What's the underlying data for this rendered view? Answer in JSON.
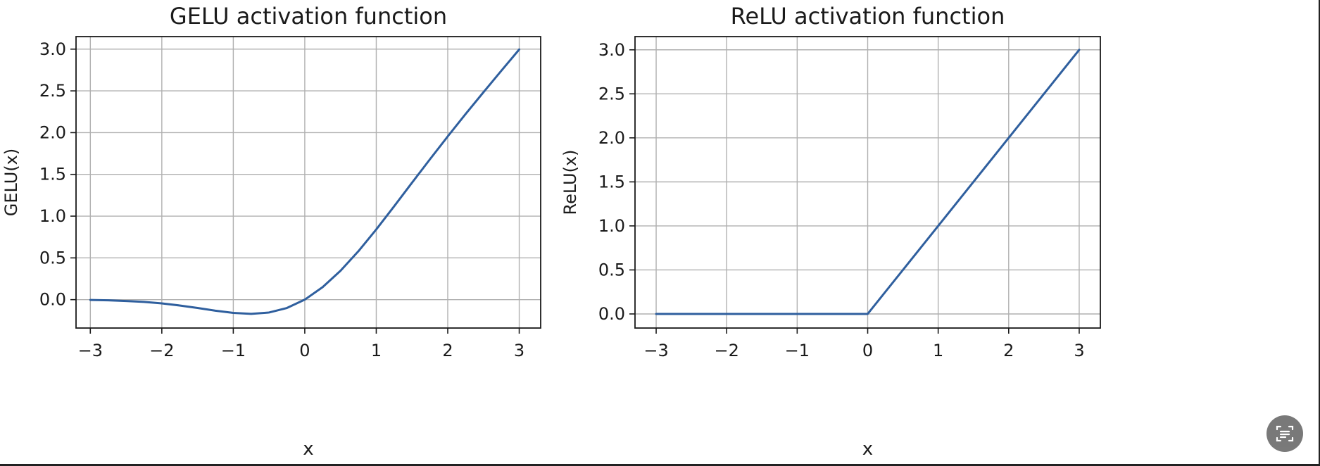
{
  "chart_data": [
    {
      "type": "line",
      "title": "GELU activation function",
      "xlabel": "x",
      "ylabel": "GELU(x)",
      "xlim": [
        -3.2,
        3.3
      ],
      "ylim": [
        -0.34,
        3.15
      ],
      "xticks": [
        -3,
        -2,
        -1,
        0,
        1,
        2,
        3
      ],
      "xtick_labels": [
        "−3",
        "−2",
        "−1",
        "0",
        "1",
        "2",
        "3"
      ],
      "yticks": [
        0.0,
        0.5,
        1.0,
        1.5,
        2.0,
        2.5,
        3.0
      ],
      "ytick_labels": [
        "0.0",
        "0.5",
        "1.0",
        "1.5",
        "2.0",
        "2.5",
        "3.0"
      ],
      "grid": true,
      "series": [
        {
          "color": "#2f5f9e",
          "x": [
            -3.0,
            -2.75,
            -2.5,
            -2.25,
            -2.0,
            -1.75,
            -1.5,
            -1.25,
            -1.0,
            -0.75,
            -0.5,
            -0.25,
            0.0,
            0.25,
            0.5,
            0.75,
            1.0,
            1.25,
            1.5,
            1.75,
            2.0,
            2.25,
            2.5,
            2.75,
            3.0
          ],
          "y": [
            -0.004,
            -0.008,
            -0.016,
            -0.027,
            -0.045,
            -0.07,
            -0.1,
            -0.132,
            -0.159,
            -0.17,
            -0.154,
            -0.1,
            0.0,
            0.15,
            0.346,
            0.58,
            0.841,
            1.118,
            1.4,
            1.68,
            1.955,
            2.223,
            2.484,
            2.742,
            2.996
          ]
        }
      ]
    },
    {
      "type": "line",
      "title": "ReLU activation function",
      "xlabel": "x",
      "ylabel": "ReLU(x)",
      "xlim": [
        -3.3,
        3.3
      ],
      "ylim": [
        -0.16,
        3.15
      ],
      "xticks": [
        -3,
        -2,
        -1,
        0,
        1,
        2,
        3
      ],
      "xtick_labels": [
        "−3",
        "−2",
        "−1",
        "0",
        "1",
        "2",
        "3"
      ],
      "yticks": [
        0.0,
        0.5,
        1.0,
        1.5,
        2.0,
        2.5,
        3.0
      ],
      "ytick_labels": [
        "0.0",
        "0.5",
        "1.0",
        "1.5",
        "2.0",
        "2.5",
        "3.0"
      ],
      "grid": true,
      "series": [
        {
          "color": "#2f5f9e",
          "x": [
            -3.0,
            -2.0,
            -1.0,
            0.0,
            1.0,
            2.0,
            3.0
          ],
          "y": [
            0.0,
            0.0,
            0.0,
            0.0,
            1.0,
            2.0,
            3.0
          ]
        }
      ]
    }
  ],
  "overlay": {
    "icon": "text-recognition-icon"
  }
}
